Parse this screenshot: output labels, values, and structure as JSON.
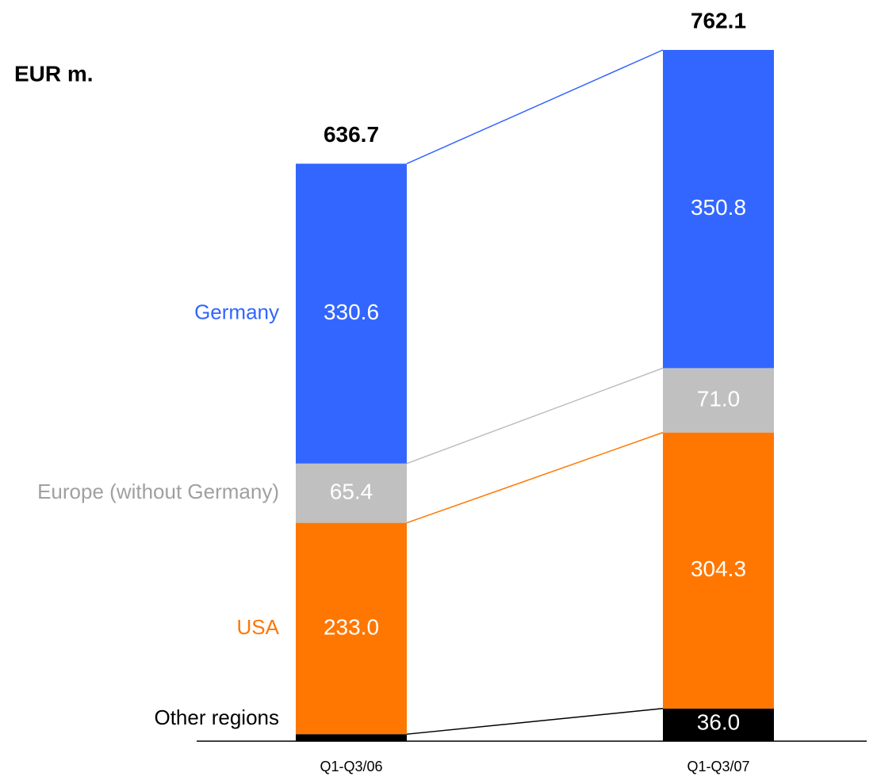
{
  "chart_data": {
    "type": "stacked_bar",
    "title": "EUR m.",
    "categories": [
      "Q1-Q3/06",
      "Q1-Q3/07"
    ],
    "series": [
      {
        "name": "Other regions",
        "color": "#000000",
        "values": [
          7.7,
          36.0
        ],
        "value_labels": [
          "7.7",
          "36.0"
        ]
      },
      {
        "name": "USA",
        "color": "#ff7700",
        "values": [
          233.0,
          304.3
        ],
        "value_labels": [
          "233.0",
          "304.3"
        ]
      },
      {
        "name": "Europe (without Germany)",
        "color": "#c0c0c0",
        "values": [
          65.4,
          71.0
        ],
        "value_labels": [
          "65.4",
          "71.0"
        ]
      },
      {
        "name": "Germany",
        "color": "#3366ff",
        "values": [
          330.6,
          350.8
        ],
        "value_labels": [
          "330.6",
          "350.8"
        ]
      }
    ],
    "totals": [
      636.7,
      762.1
    ]
  }
}
